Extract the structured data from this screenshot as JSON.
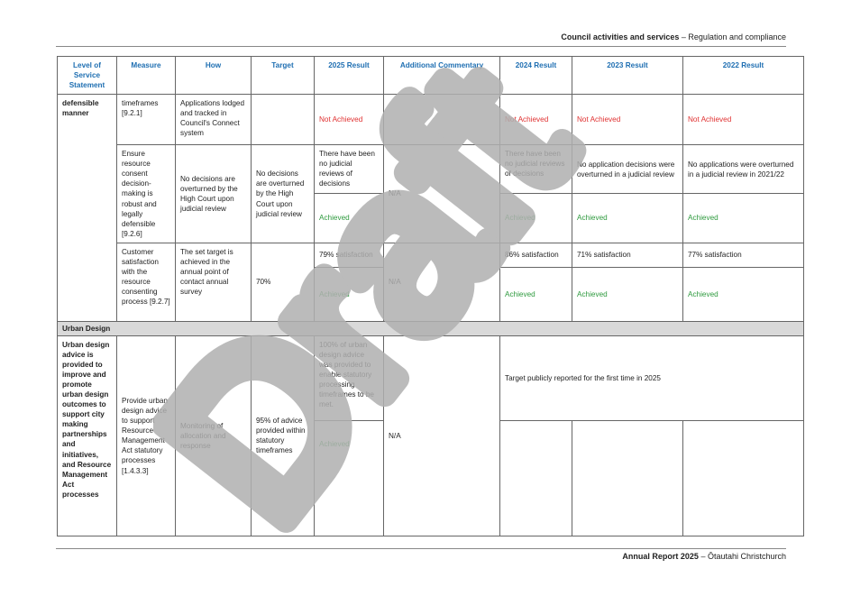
{
  "header": {
    "section": "Council activities and services",
    "sep": " – ",
    "sub": "Regulation and compliance"
  },
  "footer": {
    "title": "Annual Report 2025",
    "sep": " – ",
    "sub": "Ōtautahi Christchurch"
  },
  "columns": [
    "Level of Service Statement",
    "Measure",
    "How",
    "Target",
    "2025 Result",
    "Additional Commentary",
    "2024 Result",
    "2023 Result",
    "2022 Result"
  ],
  "rows": {
    "r1": {
      "level": "defensible manner",
      "measure": "timeframes [9.2.1]",
      "how": "Applications lodged and tracked in Council's Connect system",
      "r2025": "Not Achieved",
      "r2024": "Not Achieved",
      "r2023": "Not Achieved",
      "r2022": "Not Achieved"
    },
    "r2": {
      "measure": "Ensure resource consent decision-making is robust and legally defensible [9.2.6]",
      "how": "No decisions are overturned by the High Court upon judicial review",
      "target": "No decisions are overturned by the High Court upon judicial review",
      "r2025_text": "There have been no judicial reviews of decisions",
      "r2025": "Achieved",
      "commentary": "N/A",
      "r2024_text": "There have been no judicial reviews of decisions",
      "r2024": "Achieved",
      "r2023_text": "No application decisions were overturned in a judicial review",
      "r2023": "Achieved",
      "r2022_text": "No applications were overturned in a judicial review in 2021/22",
      "r2022": "Achieved"
    },
    "r3": {
      "measure": "Customer satisfaction with the resource consenting process [9.2.7]",
      "how": "The set target is achieved in the annual point of contact annual survey",
      "target": "70%",
      "r2025_text": "79% satisfaction",
      "r2025": "Achieved",
      "commentary": "N/A",
      "r2024_text": "86% satisfaction",
      "r2024": "Achieved",
      "r2023_text": "71% satisfaction",
      "r2023": "Achieved",
      "r2022_text": "77% satisfaction",
      "r2022": "Achieved"
    },
    "section": "Urban Design",
    "r4": {
      "level": "Urban design advice is provided to improve and promote urban design outcomes to support city making partnerships and initiatives, and Resource Management Act processes",
      "measure": "Provide urban design advice to support Resource Management Act statutory processes [1.4.3.3]",
      "how": "Monitoring of allocation and response",
      "target": "95% of advice provided within statutory timeframes",
      "r2025_text": "100% of urban design advice was provided to enable statutory processing timeframes to be met.",
      "r2025": "Achieved",
      "commentary": "N/A",
      "prior_note": "Target publicly reported for the first time in 2025"
    }
  },
  "watermark": "Draft",
  "colors": {
    "header_blue": "#1f6fb2",
    "not_achieved": "#e03131",
    "achieved": "#2e9a3e",
    "watermark": "#b0b0b0"
  }
}
